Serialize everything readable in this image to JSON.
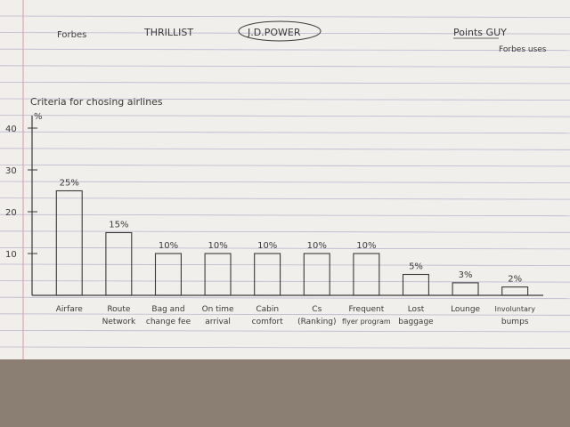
{
  "header_notes": {
    "items": [
      {
        "text": "Forbes"
      },
      {
        "text": "THRILLIST"
      },
      {
        "text": "J.D.POWER"
      },
      {
        "text": "Points GUY"
      },
      {
        "text": "Forbes uses"
      }
    ]
  },
  "colors": {
    "paper": "#f1efec",
    "ink": "#3a3a3a",
    "rule_line": "#b9b8cf",
    "margin_line": "#e4a1a8",
    "carpet": "#8a7f72"
  },
  "chart_data": {
    "type": "bar",
    "title": "Criteria for chosing airlines",
    "ylabel": "%",
    "ylim": [
      0,
      40
    ],
    "yticks": [
      10,
      20,
      30,
      40
    ],
    "grid": false,
    "legend": "none",
    "categories": [
      {
        "lines": [
          "Airfare"
        ]
      },
      {
        "lines": [
          "Route",
          "Network"
        ]
      },
      {
        "lines": [
          "Bag and",
          "change fee"
        ]
      },
      {
        "lines": [
          "On time",
          "arrival"
        ]
      },
      {
        "lines": [
          "Cabin",
          "comfort"
        ]
      },
      {
        "lines": [
          "Cs",
          "(Ranking)"
        ]
      },
      {
        "lines": [
          "Frequent",
          "flyer program"
        ]
      },
      {
        "lines": [
          "Lost",
          "baggage"
        ]
      },
      {
        "lines": [
          "Lounge"
        ]
      },
      {
        "lines": [
          "Involuntary",
          "bumps"
        ]
      }
    ],
    "values": [
      25,
      15,
      10,
      10,
      10,
      10,
      10,
      5,
      3,
      2
    ],
    "data_labels": [
      "25%",
      "15%",
      "10%",
      "10%",
      "10%",
      "10%",
      "10%",
      "5%",
      "3%",
      "2%"
    ]
  }
}
